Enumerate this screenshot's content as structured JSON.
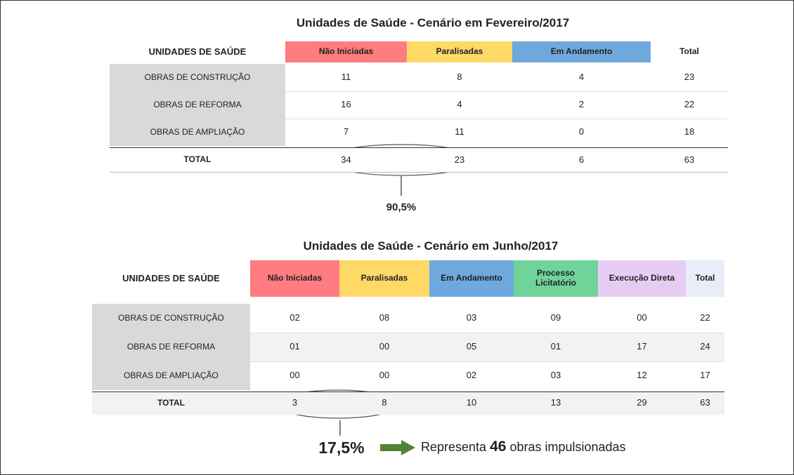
{
  "tables": [
    {
      "title": "Unidades de Saúde - Cenário em Fevereiro/2017",
      "headers": [
        "UNIDADES DE SAÚDE",
        "Não Iniciadas",
        "Paralisadas",
        "Em Andamento",
        "Total"
      ],
      "rows": [
        [
          "OBRAS DE CONSTRUÇÃO",
          "11",
          "8",
          "4",
          "23"
        ],
        [
          "OBRAS DE REFORMA",
          "16",
          "4",
          "2",
          "22"
        ],
        [
          "OBRAS DE AMPLIAÇÃO",
          "7",
          "11",
          "0",
          "18"
        ]
      ],
      "total": [
        "TOTAL",
        "34",
        "23",
        "6",
        "63"
      ],
      "highlight": "90,5%"
    },
    {
      "title": "Unidades de Saúde - Cenário em Junho/2017",
      "headers": [
        "UNIDADES DE SAÚDE",
        "Não Iniciadas",
        "Paralisadas",
        "Em Andamento",
        "Processo Licitatório",
        "Execução Direta",
        "Total"
      ],
      "rows": [
        [
          "OBRAS DE CONSTRUÇÃO",
          "02",
          "08",
          "03",
          "09",
          "00",
          "22"
        ],
        [
          "OBRAS DE REFORMA",
          "01",
          "00",
          "05",
          "01",
          "17",
          "24"
        ],
        [
          "OBRAS DE AMPLIAÇÃO",
          "00",
          "00",
          "02",
          "03",
          "12",
          "17"
        ]
      ],
      "total": [
        "TOTAL",
        "3",
        "8",
        "10",
        "13",
        "29",
        "63"
      ],
      "highlight": "17,5%"
    }
  ],
  "summary": {
    "prefix": "Representa",
    "count": "46",
    "suffix": "obras impulsionadas"
  }
}
